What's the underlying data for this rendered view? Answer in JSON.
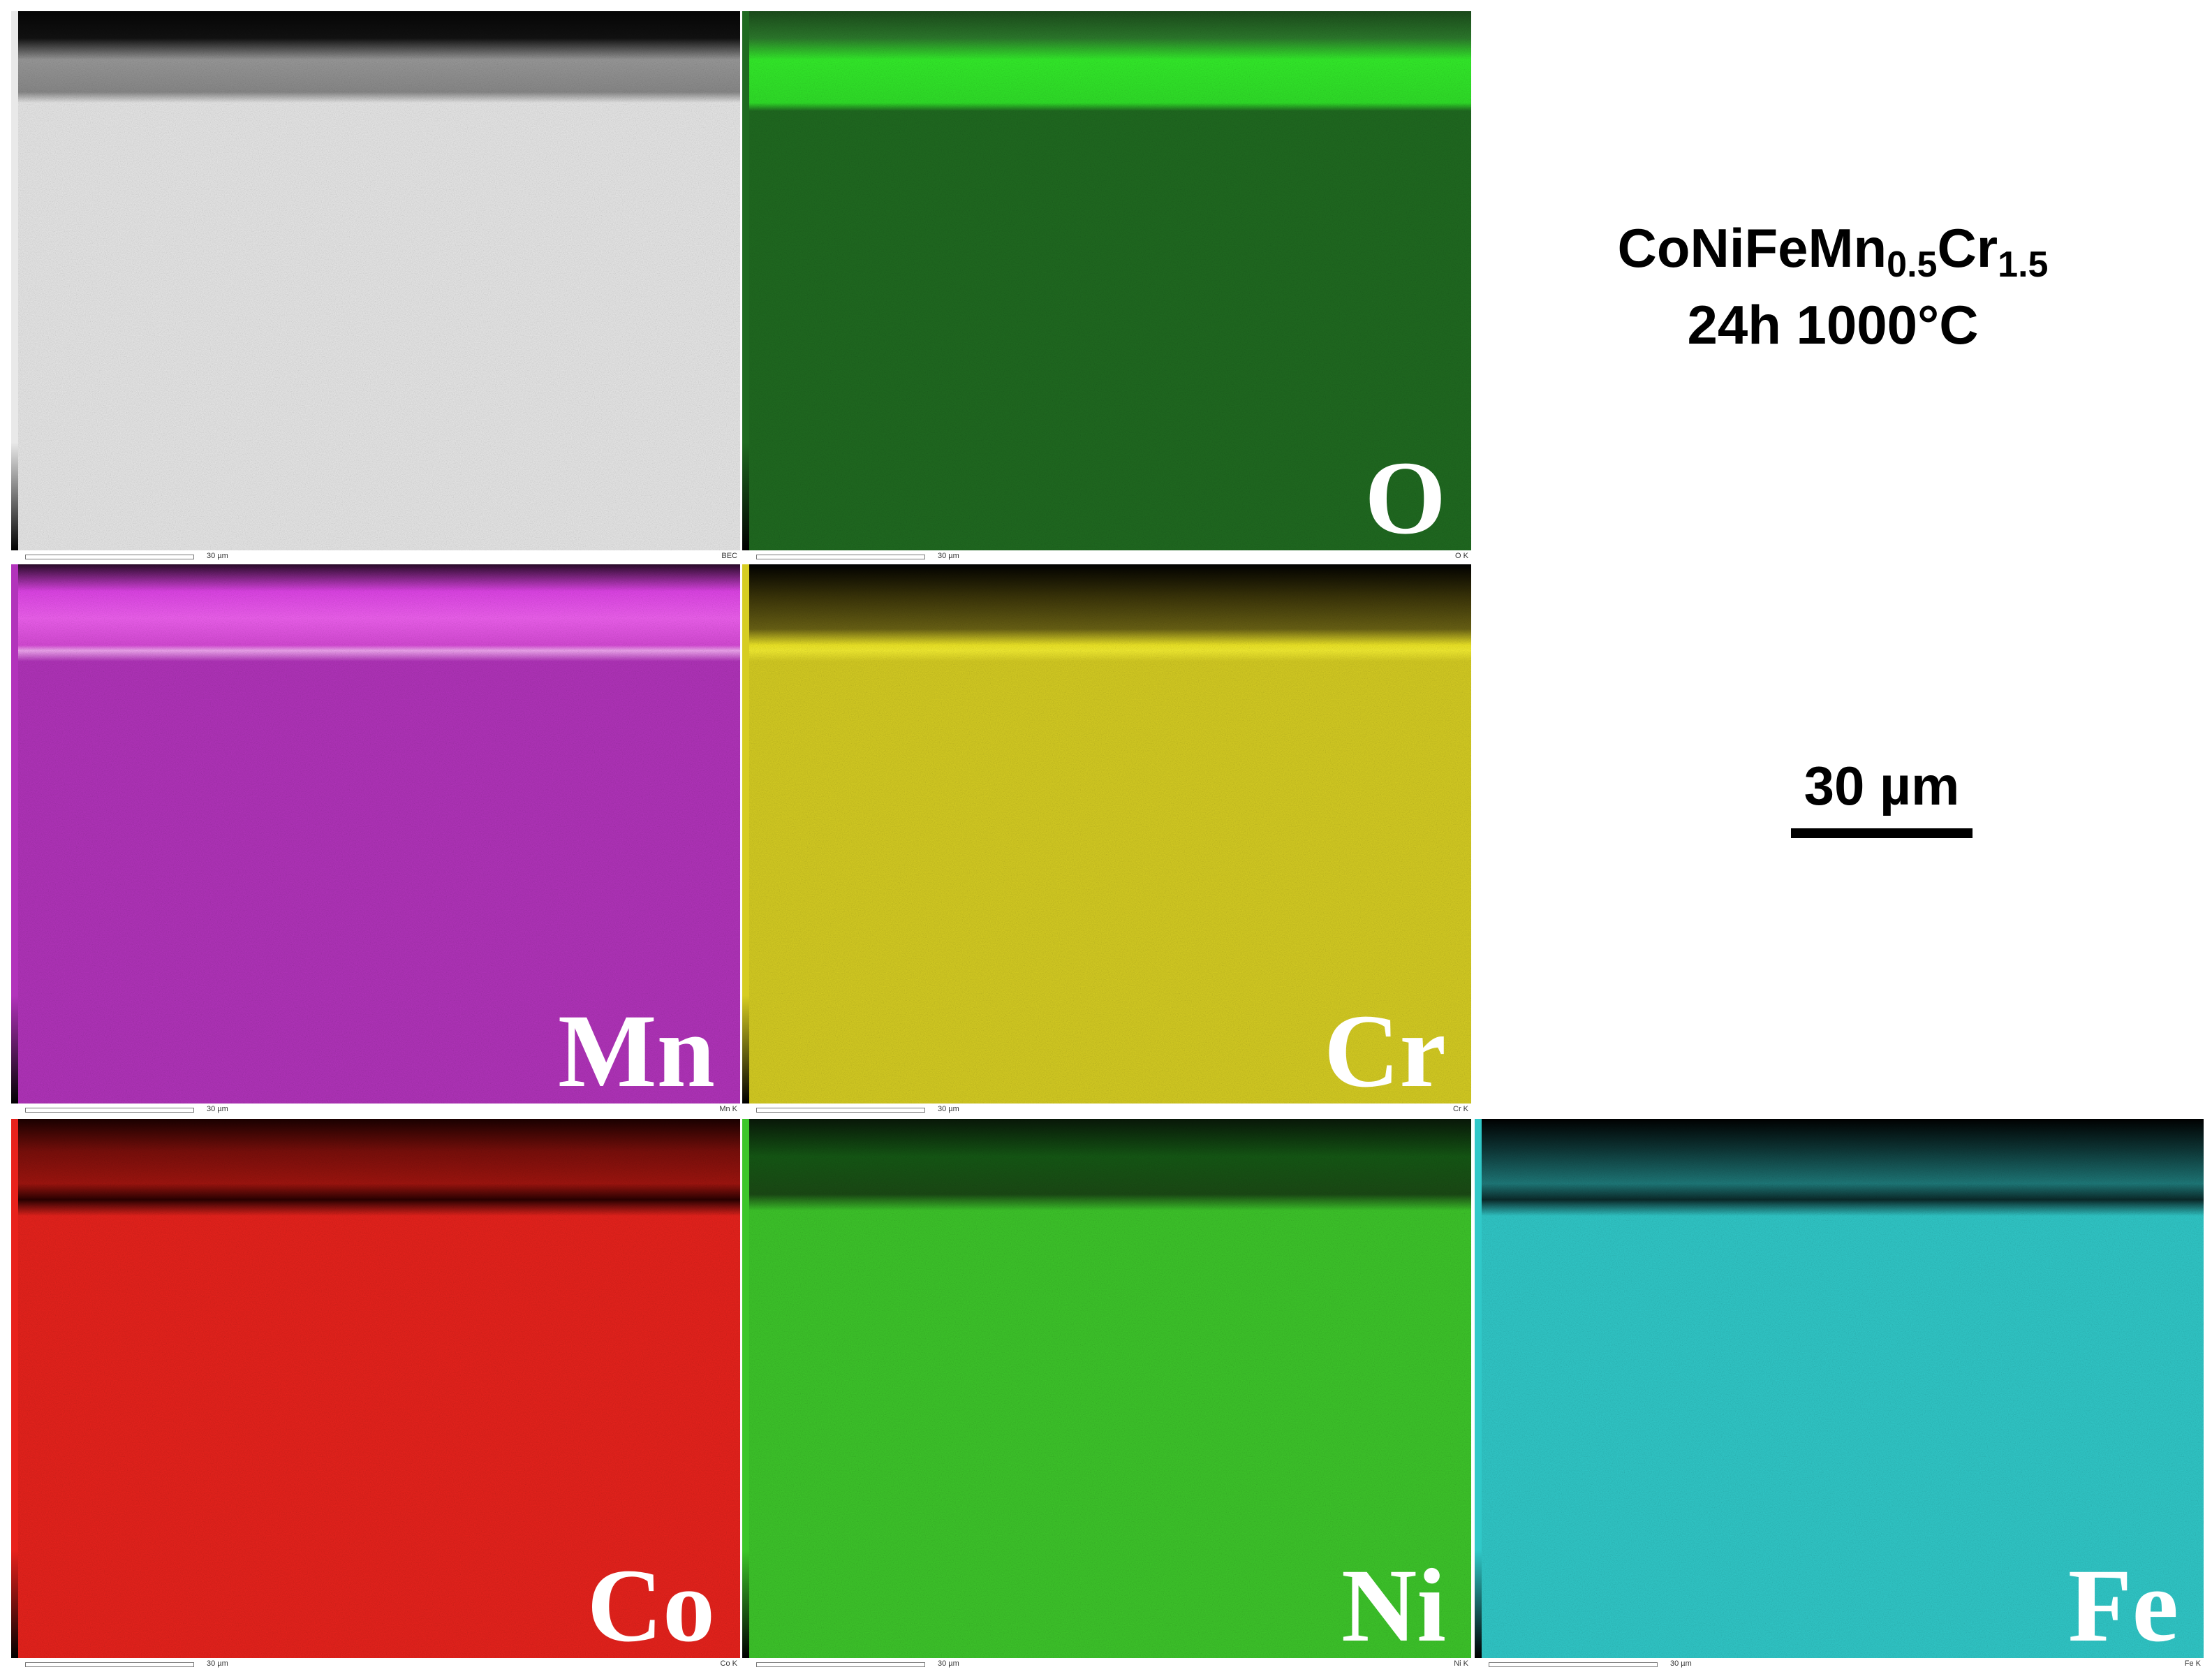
{
  "title": {
    "formula": [
      "CoNiFeMn",
      "0.5",
      "Cr",
      "1.5"
    ],
    "condition": "24h 1000°C"
  },
  "scale_bar": "30 µm",
  "panels": [
    {
      "detector": "BEC",
      "scale_label": "30 µm",
      "color": "#e9e9e9"
    },
    {
      "label": "O",
      "detector": "O K",
      "scale_label": "30 µm",
      "color": "#1f6a20"
    },
    {
      "label": "Mn",
      "detector": "Mn K",
      "scale_label": "30 µm",
      "color": "#b233bb"
    },
    {
      "label": "Cr",
      "detector": "Cr K",
      "scale_label": "30 µm",
      "color": "#d6cd22"
    },
    {
      "label": "Co",
      "detector": "Co K",
      "scale_label": "30 µm",
      "color": "#e8221c"
    },
    {
      "label": "Ni",
      "detector": "Ni K",
      "scale_label": "30 µm",
      "color": "#3dc62a"
    },
    {
      "label": "Fe",
      "detector": "Fe K",
      "scale_label": "30 µm",
      "color": "#30c9c9"
    }
  ]
}
